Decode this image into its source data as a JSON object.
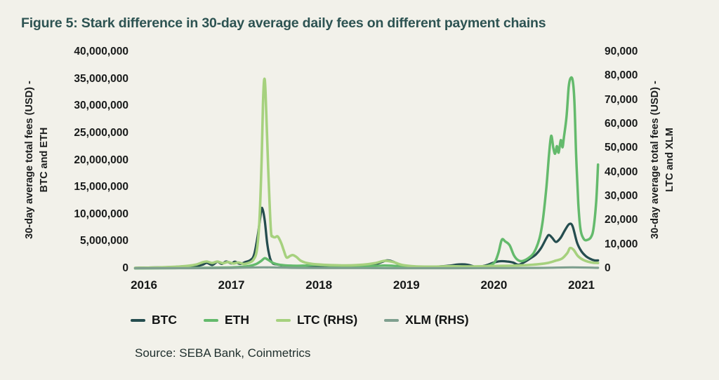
{
  "title": "Figure 5: Stark difference in 30-day average daily fees on different payment chains",
  "source": "Source: SEBA Bank, Coinmetrics",
  "colors": {
    "background": "#f2f1ea",
    "title": "#2d5352",
    "btc": "#254d4f",
    "eth": "#64ba6c",
    "ltc": "#a6d17e",
    "xlm": "#7fa08f"
  },
  "left_axis": {
    "label_line1": "30-day average total fees (USD) -",
    "label_line2": "BTC and ETH",
    "ticks": [
      "40,000,000",
      "35,000,000",
      "30,000,000",
      "25,000,000",
      "20,000,000",
      "15,000,000",
      "10,000,000",
      "5,000,000",
      "0"
    ]
  },
  "right_axis": {
    "label_line1": "30-day average total fees (USD) -",
    "label_line2": "LTC and XLM",
    "ticks": [
      "90,000",
      "80,000",
      "70,000",
      "60,000",
      "50,000",
      "40,000",
      "30,000",
      "20,000",
      "10,000",
      "0"
    ]
  },
  "x_axis": {
    "ticks": [
      "2016",
      "2017",
      "2018",
      "2019",
      "2020",
      "2021"
    ]
  },
  "chart_data": {
    "type": "line",
    "title": "Figure 5: Stark difference in 30-day average daily fees on different payment chains",
    "left_ylabel": "30-day average total fees (USD) - BTC and ETH",
    "right_ylabel": "30-day average total fees (USD) - LTC and XLM",
    "left_ylim": [
      0,
      40000000
    ],
    "right_ylim": [
      0,
      90000
    ],
    "x_range": [
      2015.9,
      2021.19
    ],
    "x_tick_years": [
      2016,
      2017,
      2018,
      2019,
      2020,
      2021
    ],
    "grid": false,
    "legend_position": "bottom",
    "series": [
      {
        "name": "BTC",
        "axis": "left",
        "color": "#254d4f",
        "points": [
          [
            2015.9,
            120000
          ],
          [
            2016.05,
            180000
          ],
          [
            2016.2,
            220000
          ],
          [
            2016.35,
            300000
          ],
          [
            2016.5,
            450000
          ],
          [
            2016.6,
            450000
          ],
          [
            2016.67,
            700000
          ],
          [
            2016.72,
            1050000
          ],
          [
            2016.78,
            650000
          ],
          [
            2016.84,
            1250000
          ],
          [
            2016.89,
            850000
          ],
          [
            2016.94,
            1300000
          ],
          [
            2017.0,
            950000
          ],
          [
            2017.04,
            1250000
          ],
          [
            2017.1,
            850000
          ],
          [
            2017.16,
            1200000
          ],
          [
            2017.22,
            1600000
          ],
          [
            2017.26,
            2600000
          ],
          [
            2017.3,
            6000000
          ],
          [
            2017.33,
            9500000
          ],
          [
            2017.35,
            11200000
          ],
          [
            2017.38,
            9000000
          ],
          [
            2017.41,
            4500000
          ],
          [
            2017.44,
            2000000
          ],
          [
            2017.47,
            1000000
          ],
          [
            2017.52,
            750000
          ],
          [
            2017.6,
            550000
          ],
          [
            2017.7,
            500000
          ],
          [
            2017.8,
            420000
          ],
          [
            2017.9,
            500000
          ],
          [
            2018.0,
            450000
          ],
          [
            2018.15,
            350000
          ],
          [
            2018.3,
            350000
          ],
          [
            2018.45,
            400000
          ],
          [
            2018.6,
            550000
          ],
          [
            2018.7,
            1100000
          ],
          [
            2018.78,
            1500000
          ],
          [
            2018.85,
            1250000
          ],
          [
            2018.95,
            550000
          ],
          [
            2019.05,
            400000
          ],
          [
            2019.2,
            300000
          ],
          [
            2019.35,
            350000
          ],
          [
            2019.5,
            550000
          ],
          [
            2019.6,
            750000
          ],
          [
            2019.7,
            700000
          ],
          [
            2019.8,
            300000
          ],
          [
            2019.9,
            550000
          ],
          [
            2020.0,
            1100000
          ],
          [
            2020.07,
            1350000
          ],
          [
            2020.15,
            1300000
          ],
          [
            2020.22,
            1100000
          ],
          [
            2020.28,
            700000
          ],
          [
            2020.35,
            1200000
          ],
          [
            2020.42,
            1900000
          ],
          [
            2020.48,
            2600000
          ],
          [
            2020.54,
            3800000
          ],
          [
            2020.6,
            5600000
          ],
          [
            2020.63,
            6200000
          ],
          [
            2020.67,
            5600000
          ],
          [
            2020.71,
            4900000
          ],
          [
            2020.76,
            5600000
          ],
          [
            2020.81,
            7000000
          ],
          [
            2020.86,
            8200000
          ],
          [
            2020.9,
            7800000
          ],
          [
            2020.95,
            4800000
          ],
          [
            2021.0,
            3200000
          ],
          [
            2021.05,
            2300000
          ],
          [
            2021.1,
            1800000
          ],
          [
            2021.15,
            1500000
          ],
          [
            2021.19,
            1500000
          ]
        ]
      },
      {
        "name": "ETH",
        "axis": "left",
        "color": "#64ba6c",
        "points": [
          [
            2015.9,
            30000
          ],
          [
            2016.2,
            60000
          ],
          [
            2016.5,
            100000
          ],
          [
            2016.8,
            140000
          ],
          [
            2017.0,
            200000
          ],
          [
            2017.1,
            280000
          ],
          [
            2017.2,
            450000
          ],
          [
            2017.28,
            800000
          ],
          [
            2017.34,
            1400000
          ],
          [
            2017.38,
            1900000
          ],
          [
            2017.42,
            1600000
          ],
          [
            2017.48,
            1000000
          ],
          [
            2017.55,
            700000
          ],
          [
            2017.65,
            550000
          ],
          [
            2017.75,
            500000
          ],
          [
            2017.85,
            550000
          ],
          [
            2017.95,
            650000
          ],
          [
            2018.05,
            600000
          ],
          [
            2018.2,
            450000
          ],
          [
            2018.4,
            380000
          ],
          [
            2018.6,
            450000
          ],
          [
            2018.75,
            550000
          ],
          [
            2018.9,
            450000
          ],
          [
            2019.05,
            300000
          ],
          [
            2019.25,
            250000
          ],
          [
            2019.45,
            300000
          ],
          [
            2019.6,
            380000
          ],
          [
            2019.75,
            320000
          ],
          [
            2019.9,
            420000
          ],
          [
            2020.0,
            1000000
          ],
          [
            2020.05,
            2800000
          ],
          [
            2020.09,
            5300000
          ],
          [
            2020.13,
            5000000
          ],
          [
            2020.18,
            4300000
          ],
          [
            2020.23,
            2400000
          ],
          [
            2020.28,
            1500000
          ],
          [
            2020.33,
            1400000
          ],
          [
            2020.4,
            2000000
          ],
          [
            2020.46,
            3000000
          ],
          [
            2020.52,
            5500000
          ],
          [
            2020.56,
            9000000
          ],
          [
            2020.6,
            15000000
          ],
          [
            2020.63,
            21000000
          ],
          [
            2020.655,
            24500000
          ],
          [
            2020.68,
            22200000
          ],
          [
            2020.7,
            21200000
          ],
          [
            2020.72,
            22600000
          ],
          [
            2020.74,
            21400000
          ],
          [
            2020.765,
            23700000
          ],
          [
            2020.785,
            22400000
          ],
          [
            2020.8,
            24200000
          ],
          [
            2020.83,
            28000000
          ],
          [
            2020.855,
            33500000
          ],
          [
            2020.875,
            35100000
          ],
          [
            2020.9,
            34800000
          ],
          [
            2020.92,
            31000000
          ],
          [
            2020.94,
            21000000
          ],
          [
            2020.965,
            12000000
          ],
          [
            2020.99,
            7200000
          ],
          [
            2021.03,
            5400000
          ],
          [
            2021.07,
            5300000
          ],
          [
            2021.11,
            5800000
          ],
          [
            2021.14,
            7500000
          ],
          [
            2021.17,
            12500000
          ],
          [
            2021.19,
            19200000
          ]
        ]
      },
      {
        "name": "LTC (RHS)",
        "axis": "right",
        "color": "#a6d17e",
        "points": [
          [
            2015.9,
            250
          ],
          [
            2016.15,
            450
          ],
          [
            2016.35,
            700
          ],
          [
            2016.5,
            1100
          ],
          [
            2016.6,
            1700
          ],
          [
            2016.67,
            2600
          ],
          [
            2016.72,
            2900
          ],
          [
            2016.78,
            2300
          ],
          [
            2016.84,
            2900
          ],
          [
            2016.9,
            2200
          ],
          [
            2016.96,
            2700
          ],
          [
            2017.02,
            2100
          ],
          [
            2017.08,
            2500
          ],
          [
            2017.14,
            1900
          ],
          [
            2017.2,
            2400
          ],
          [
            2017.25,
            3600
          ],
          [
            2017.29,
            7500
          ],
          [
            2017.32,
            20000
          ],
          [
            2017.345,
            45000
          ],
          [
            2017.36,
            68000
          ],
          [
            2017.375,
            78500
          ],
          [
            2017.39,
            73000
          ],
          [
            2017.42,
            42000
          ],
          [
            2017.45,
            16500
          ],
          [
            2017.47,
            13400
          ],
          [
            2017.5,
            13000
          ],
          [
            2017.53,
            13300
          ],
          [
            2017.57,
            10500
          ],
          [
            2017.6,
            7300
          ],
          [
            2017.63,
            4600
          ],
          [
            2017.67,
            5200
          ],
          [
            2017.7,
            5600
          ],
          [
            2017.74,
            4900
          ],
          [
            2017.79,
            3300
          ],
          [
            2017.85,
            2400
          ],
          [
            2017.95,
            1800
          ],
          [
            2018.1,
            1500
          ],
          [
            2018.3,
            1300
          ],
          [
            2018.5,
            1600
          ],
          [
            2018.65,
            2300
          ],
          [
            2018.75,
            3200
          ],
          [
            2018.85,
            2700
          ],
          [
            2018.95,
            1500
          ],
          [
            2019.1,
            900
          ],
          [
            2019.3,
            800
          ],
          [
            2019.5,
            950
          ],
          [
            2019.7,
            850
          ],
          [
            2019.9,
            950
          ],
          [
            2020.1,
            1100
          ],
          [
            2020.3,
            1300
          ],
          [
            2020.45,
            1600
          ],
          [
            2020.6,
            2200
          ],
          [
            2020.7,
            3200
          ],
          [
            2020.78,
            4200
          ],
          [
            2020.84,
            6500
          ],
          [
            2020.87,
            8500
          ],
          [
            2020.91,
            7800
          ],
          [
            2020.96,
            5200
          ],
          [
            2021.02,
            3600
          ],
          [
            2021.08,
            2800
          ],
          [
            2021.14,
            2400
          ],
          [
            2021.19,
            2300
          ]
        ]
      },
      {
        "name": "XLM (RHS)",
        "axis": "right",
        "color": "#7fa08f",
        "points": [
          [
            2015.9,
            150
          ],
          [
            2016.5,
            150
          ],
          [
            2017.0,
            250
          ],
          [
            2017.37,
            500
          ],
          [
            2017.8,
            250
          ],
          [
            2018.5,
            200
          ],
          [
            2019.0,
            150
          ],
          [
            2019.5,
            150
          ],
          [
            2020.0,
            200
          ],
          [
            2020.5,
            250
          ],
          [
            2020.9,
            500
          ],
          [
            2021.19,
            300
          ]
        ]
      }
    ]
  }
}
